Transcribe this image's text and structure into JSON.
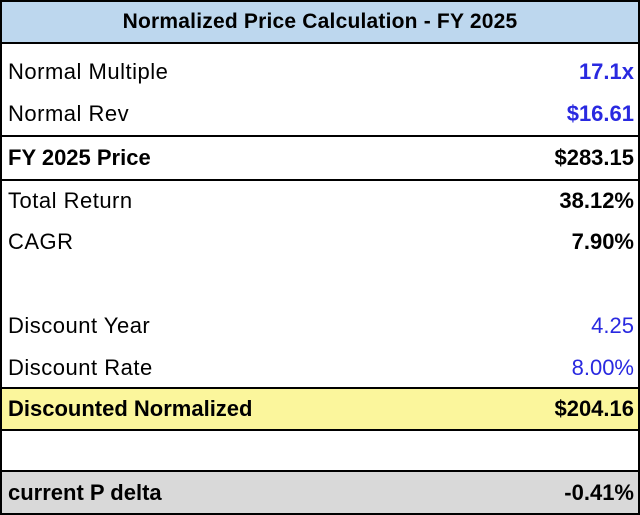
{
  "title": "Normalized Price Calculation - FY 2025",
  "rows": [
    {
      "label": "Normal Multiple",
      "value": "17.1x"
    },
    {
      "label": "Normal Rev",
      "value": "$16.61"
    },
    {
      "label": "FY 2025 Price",
      "value": "$283.15"
    },
    {
      "label": "Total Return",
      "value": "38.12%"
    },
    {
      "label": "CAGR",
      "value": "7.90%"
    },
    {
      "label": "",
      "value": ""
    },
    {
      "label": "Discount Year",
      "value": "4.25"
    },
    {
      "label": "Discount Rate",
      "value": "8.00%"
    },
    {
      "label": "Discounted Normalized",
      "value": "$204.16"
    },
    {
      "label": "",
      "value": ""
    },
    {
      "label": "current P delta",
      "value": "-0.41%"
    }
  ],
  "colors": {
    "title_fill": "#bdd7ee",
    "highlight_fill": "#fbf69c",
    "footer_fill": "#d9d9d9",
    "input_blue": "#2929e0"
  }
}
